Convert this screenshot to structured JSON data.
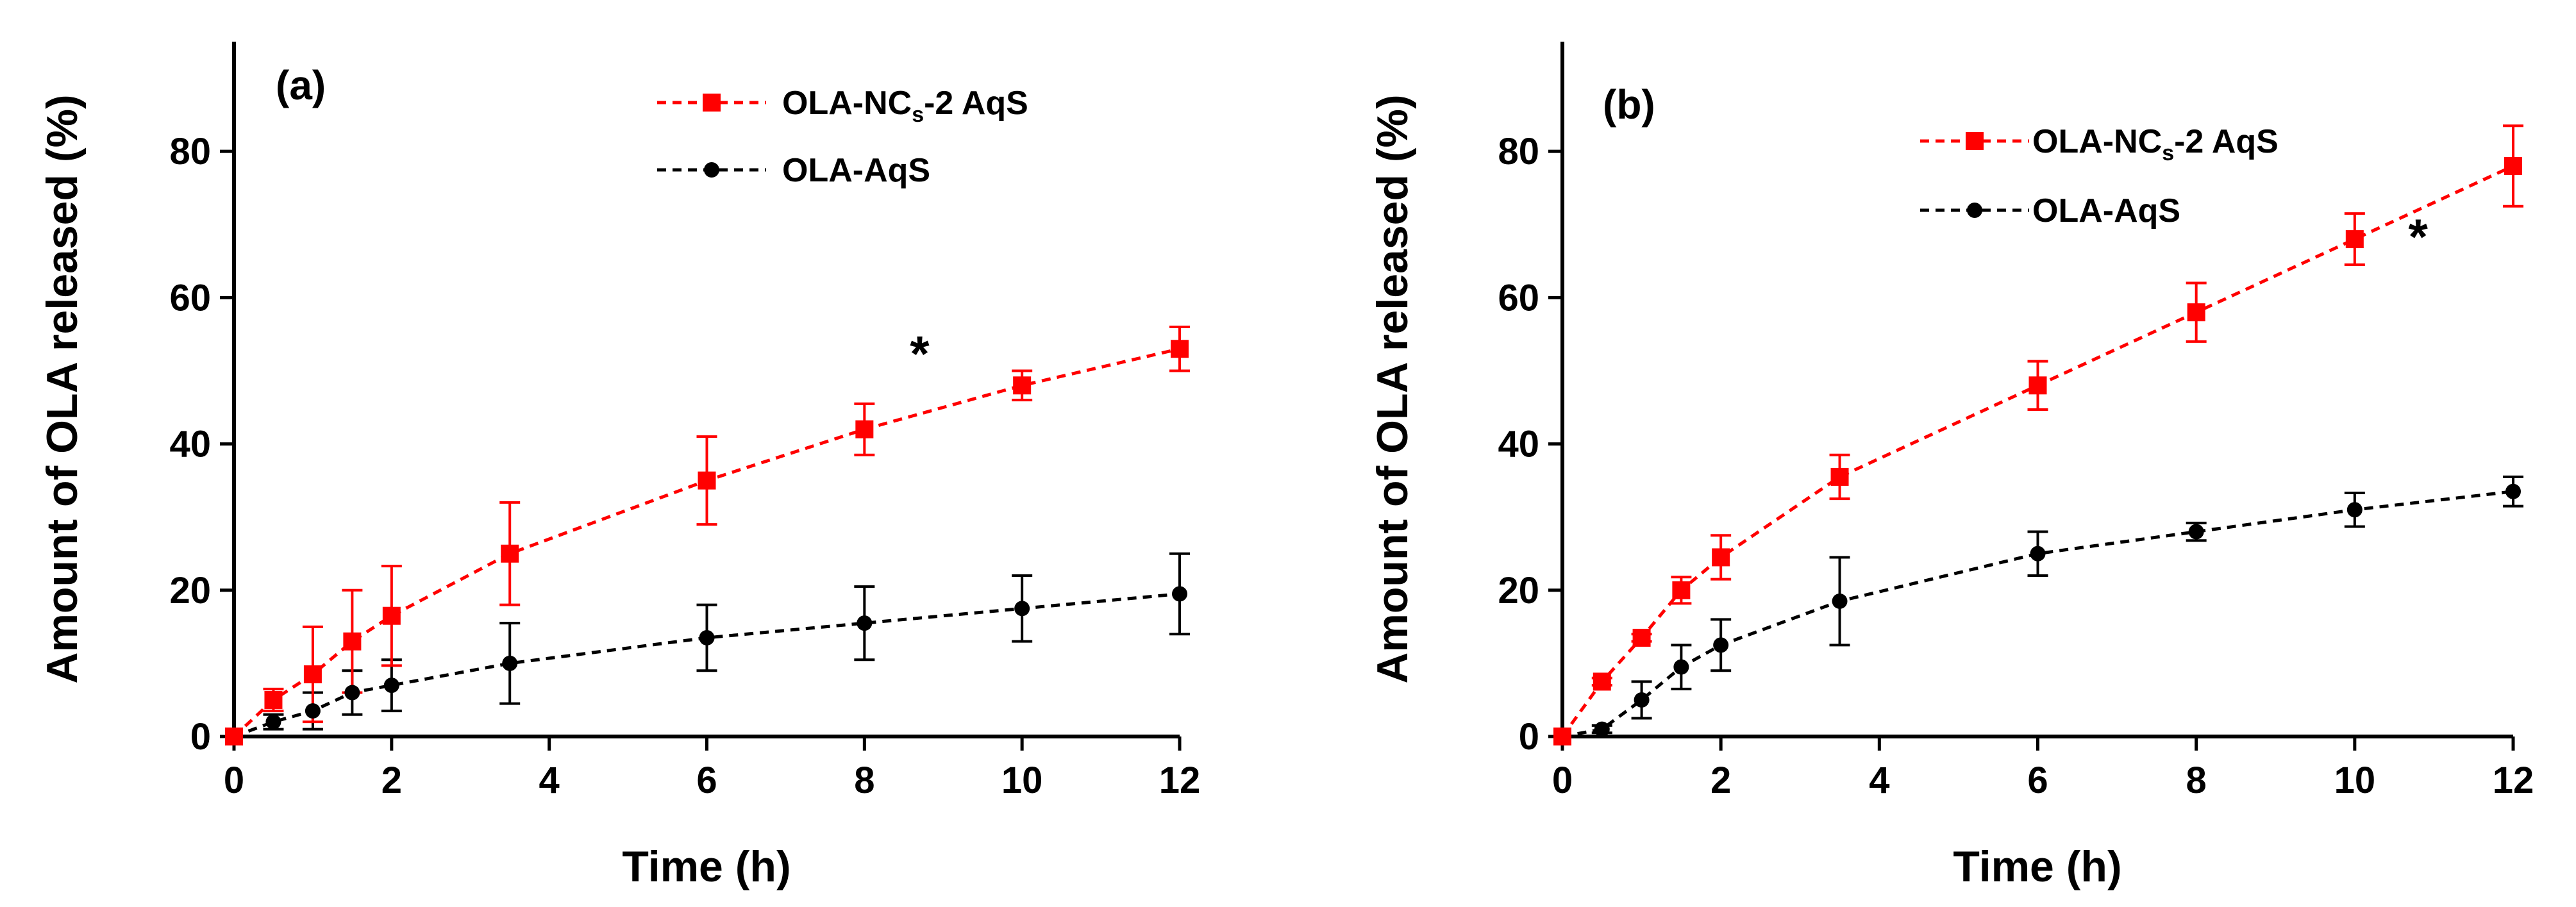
{
  "colors": {
    "series_red": "#ff0000",
    "series_black": "#000000",
    "axis": "#000000"
  },
  "chart_data": [
    {
      "type": "line",
      "panel_label": "(a)",
      "xlabel": "Time (h)",
      "ylabel": "Amount of OLA released (%)",
      "xlim": [
        0,
        12
      ],
      "ylim": [
        0,
        95
      ],
      "xticks": [
        0,
        2,
        4,
        6,
        8,
        10,
        12
      ],
      "yticks": [
        0,
        20,
        40,
        60,
        80
      ],
      "annotation": {
        "text": "*",
        "x": 8.7,
        "y": 50
      },
      "series": [
        {
          "name": "OLA-NCs-2 AqS",
          "legend_main": "OLA-NC",
          "legend_sub": "s",
          "legend_rest": "-2 AqS",
          "color": "#ff0000",
          "marker": "square",
          "x": [
            0,
            0.5,
            1,
            1.5,
            2,
            3.5,
            6,
            8,
            10,
            12
          ],
          "y": [
            0,
            5,
            8.5,
            13,
            16.5,
            25,
            35,
            42,
            48,
            53
          ],
          "err": [
            0,
            1.5,
            6.5,
            7,
            6.8,
            7,
            6,
            3.5,
            2,
            3
          ]
        },
        {
          "name": "OLA-AqS",
          "legend_main": "OLA-AqS",
          "legend_sub": "",
          "legend_rest": "",
          "color": "#000000",
          "marker": "circle",
          "x": [
            0,
            0.5,
            1,
            1.5,
            2,
            3.5,
            6,
            8,
            10,
            12
          ],
          "y": [
            0,
            2,
            3.5,
            6,
            7,
            10,
            13.5,
            15.5,
            17.5,
            19.5
          ],
          "err": [
            0,
            1,
            2.5,
            3,
            3.5,
            5.5,
            4.5,
            5,
            4.5,
            5.5
          ]
        }
      ]
    },
    {
      "type": "line",
      "panel_label": "(b)",
      "xlabel": "Time (h)",
      "ylabel": "Amount of OLA released (%)",
      "xlim": [
        0,
        12
      ],
      "ylim": [
        0,
        95
      ],
      "xticks": [
        0,
        2,
        4,
        6,
        8,
        10,
        12
      ],
      "yticks": [
        0,
        20,
        40,
        60,
        80
      ],
      "annotation": {
        "text": "*",
        "x": 10.8,
        "y": 66
      },
      "series": [
        {
          "name": "OLA-NCs-2 AqS",
          "legend_main": "OLA-NC",
          "legend_sub": "s",
          "legend_rest": "-2 AqS",
          "color": "#ff0000",
          "marker": "square",
          "x": [
            0,
            0.5,
            1,
            1.5,
            2,
            3.5,
            6,
            8,
            10,
            12
          ],
          "y": [
            0,
            7.5,
            13.5,
            20,
            24.5,
            35.5,
            48,
            58,
            68,
            78
          ],
          "err": [
            0,
            0.5,
            0.5,
            1.8,
            3,
            3,
            3.3,
            4,
            3.5,
            5.5
          ]
        },
        {
          "name": "OLA-AqS",
          "legend_main": "OLA-AqS",
          "legend_sub": "",
          "legend_rest": "",
          "color": "#000000",
          "marker": "circle",
          "x": [
            0,
            0.5,
            1,
            1.5,
            2,
            3.5,
            6,
            8,
            10,
            12
          ],
          "y": [
            0,
            1,
            5,
            9.5,
            12.5,
            18.5,
            25,
            28,
            31,
            33.5
          ],
          "err": [
            0,
            0.5,
            2.5,
            3,
            3.5,
            6,
            3,
            1.2,
            2.3,
            2
          ]
        }
      ]
    }
  ]
}
